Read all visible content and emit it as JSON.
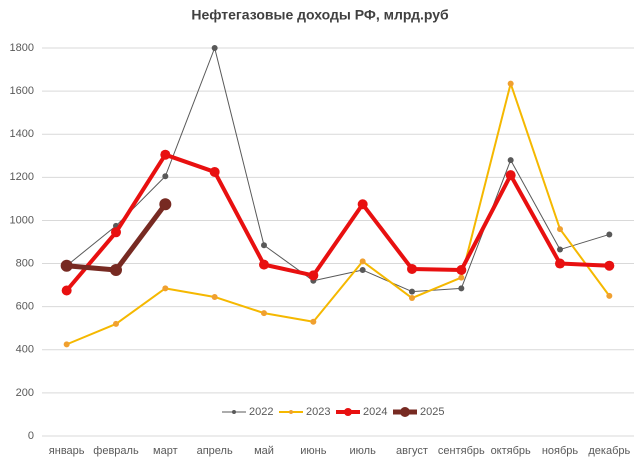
{
  "chart_data": {
    "type": "line",
    "title": "Нефтегазовые доходы РФ, млрд.руб",
    "categories": [
      "январь",
      "февраль",
      "март",
      "апрель",
      "май",
      "июнь",
      "июль",
      "август",
      "сентябрь",
      "октябрь",
      "ноябрь",
      "декабрь"
    ],
    "series": [
      {
        "name": "2022",
        "color": "#595959",
        "marker_color": "#595959",
        "values": [
          790,
          975,
          1205,
          1800,
          885,
          720,
          770,
          670,
          685,
          1280,
          865,
          935
        ]
      },
      {
        "name": "2023",
        "color": "#f5b800",
        "marker_color": "#f0a030",
        "values": [
          425,
          520,
          685,
          645,
          570,
          530,
          810,
          640,
          735,
          1635,
          960,
          650
        ]
      },
      {
        "name": "2024",
        "color": "#e81010",
        "marker_color": "#e81010",
        "values": [
          675,
          945,
          1305,
          1225,
          795,
          745,
          1075,
          775,
          770,
          1210,
          800,
          790
        ]
      },
      {
        "name": "2025",
        "color": "#772a22",
        "marker_color": "#772a22",
        "values": [
          790,
          770,
          1075,
          null,
          null,
          null,
          null,
          null,
          null,
          null,
          null,
          null
        ]
      }
    ],
    "ylim": [
      0,
      1800
    ],
    "yticks": [
      0,
      200,
      400,
      600,
      800,
      1000,
      1200,
      1400,
      1600,
      1800
    ],
    "grid": true,
    "legend": "bottom"
  }
}
